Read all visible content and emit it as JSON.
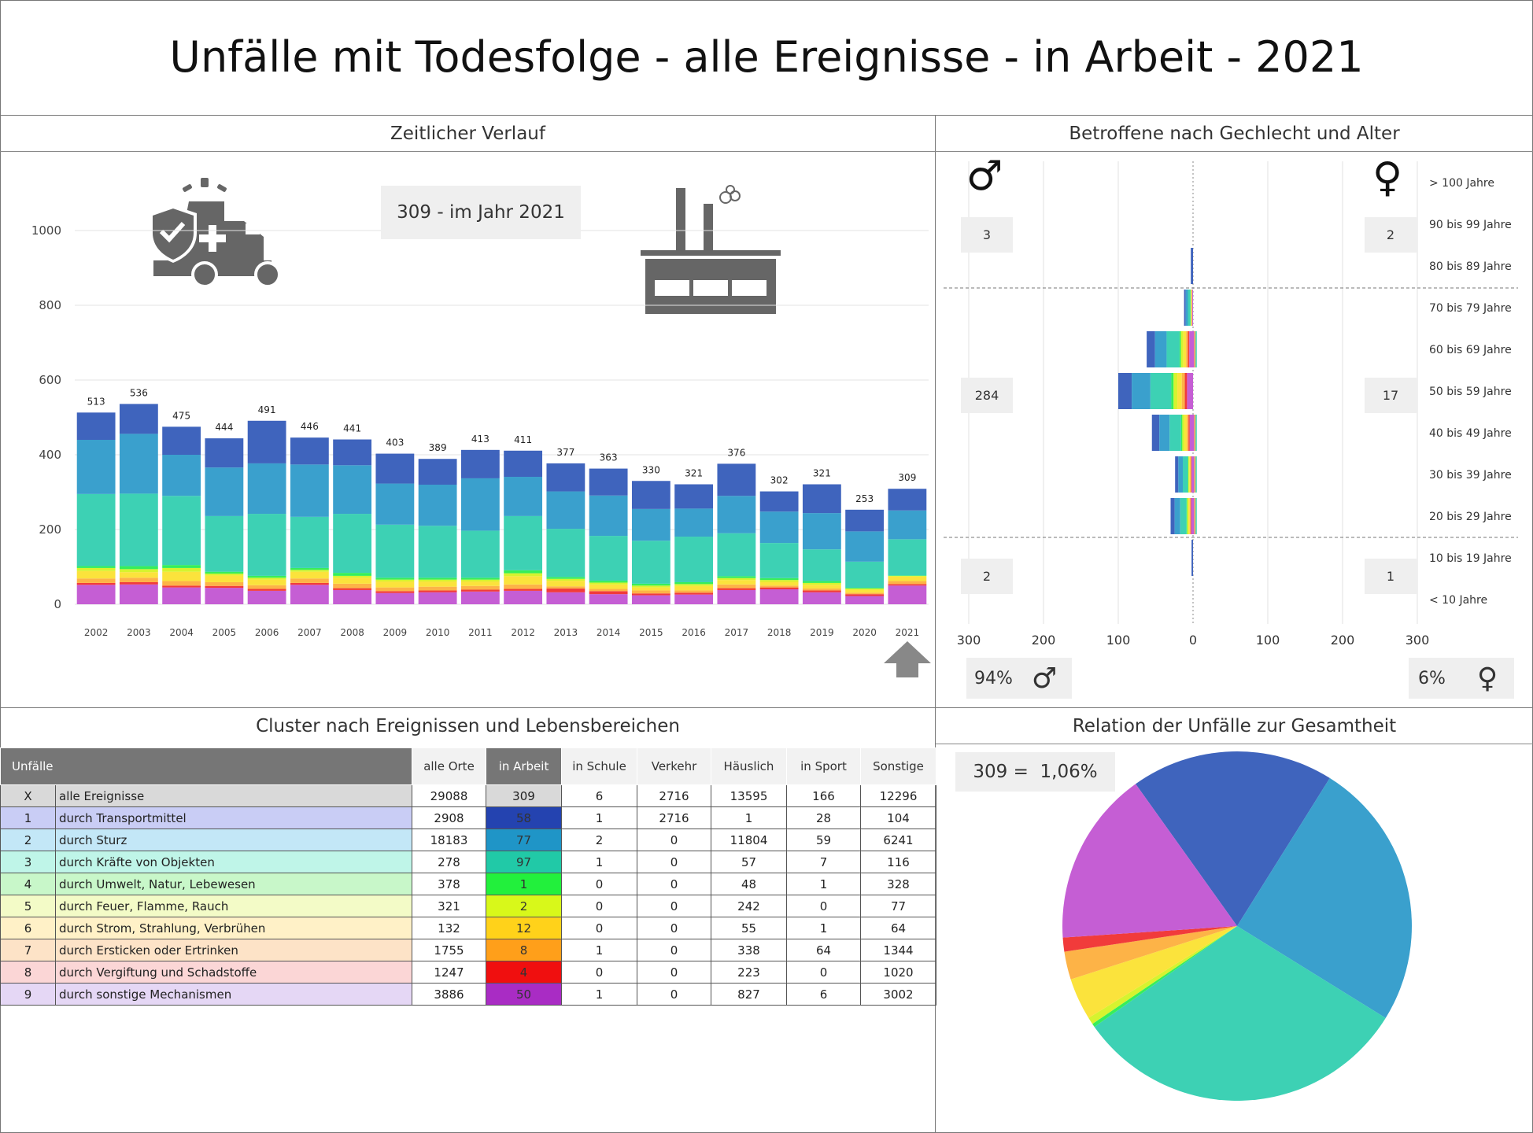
{
  "title": "Unfälle mit Todesfolge - alle Ereignisse - in Arbeit - 2021",
  "panels": {
    "timeline": "Zeitlicher Verlauf",
    "gender_age": "Betroffene nach Gechlecht und Alter",
    "cluster": "Cluster nach Ereignissen und Lebensbereichen",
    "relation": "Relation der Unfälle zur Gesamtheit"
  },
  "timeline_box": "309 - im Jahr 2021",
  "relation_box": "309 =  1,06%",
  "gender": {
    "male_pct": "94%",
    "female_pct": "6%",
    "male_symbol": "♂",
    "female_symbol": "♀",
    "male_groups": [
      "3",
      "284",
      "2"
    ],
    "female_groups": [
      "2",
      "17",
      "1"
    ]
  },
  "colors": {
    "transport": "#3f64bd",
    "sturz": "#3aa0cd",
    "kraefte": "#3dd1b4",
    "umwelt": "#37ee5a",
    "feuer": "#d6f32f",
    "strom": "#fbe33c",
    "ersticken": "#fdb347",
    "vergiftung": "#f13b3b",
    "sonstige": "#c55ed4"
  },
  "chart_data": [
    {
      "type": "bar",
      "stacked": true,
      "categories": [
        "2002",
        "2003",
        "2004",
        "2005",
        "2006",
        "2007",
        "2008",
        "2009",
        "2010",
        "2011",
        "2012",
        "2013",
        "2014",
        "2015",
        "2016",
        "2017",
        "2018",
        "2019",
        "2020",
        "2021"
      ],
      "totals": [
        513,
        536,
        475,
        444,
        491,
        446,
        441,
        403,
        389,
        413,
        411,
        377,
        363,
        330,
        321,
        376,
        302,
        321,
        253,
        309
      ],
      "series": [
        {
          "values": [
            52,
            53,
            45,
            44,
            36,
            52,
            38,
            30,
            32,
            34,
            36,
            32,
            27,
            24,
            26,
            38,
            40,
            32,
            22,
            50
          ]
        },
        {
          "values": [
            5,
            6,
            5,
            5,
            5,
            5,
            5,
            5,
            5,
            5,
            5,
            10,
            8,
            5,
            5,
            5,
            5,
            5,
            5,
            4
          ]
        },
        {
          "values": [
            12,
            12,
            12,
            10,
            10,
            12,
            12,
            10,
            10,
            10,
            12,
            6,
            6,
            8,
            6,
            10,
            5,
            5,
            4,
            8
          ]
        },
        {
          "values": [
            20,
            15,
            25,
            18,
            15,
            18,
            16,
            16,
            14,
            12,
            22,
            15,
            12,
            8,
            12,
            12,
            10,
            10,
            8,
            12
          ]
        },
        {
          "values": [
            8,
            8,
            10,
            5,
            5,
            5,
            5,
            5,
            5,
            5,
            8,
            5,
            5,
            5,
            5,
            5,
            5,
            5,
            3,
            2
          ]
        },
        {
          "values": [
            5,
            8,
            8,
            5,
            5,
            5,
            8,
            5,
            5,
            5,
            8,
            5,
            5,
            5,
            5,
            5,
            5,
            5,
            2,
            1
          ]
        },
        {
          "values": [
            193,
            194,
            185,
            149,
            166,
            137,
            158,
            142,
            139,
            126,
            145,
            129,
            120,
            115,
            122,
            115,
            94,
            85,
            70,
            97
          ]
        },
        {
          "values": [
            145,
            160,
            110,
            130,
            135,
            140,
            130,
            110,
            110,
            140,
            105,
            100,
            108,
            85,
            75,
            100,
            84,
            97,
            81,
            77
          ]
        },
        {
          "values": [
            73,
            80,
            75,
            78,
            114,
            72,
            69,
            80,
            69,
            76,
            70,
            75,
            72,
            75,
            65,
            86,
            54,
            77,
            58,
            58
          ]
        }
      ],
      "ylim": [
        0,
        1000
      ],
      "yticks": [
        0,
        200,
        400,
        600,
        800,
        1000
      ]
    },
    {
      "type": "bar",
      "orientation": "horizontal",
      "categories": [
        "< 10 Jahre",
        "10 bis 19 Jahre",
        "20 bis 29 Jahre",
        "30 bis 39 Jahre",
        "40 bis 49 Jahre",
        "50 bis 59 Jahre",
        "60 bis 69 Jahre",
        "70 bis 79 Jahre",
        "80 bis 89 Jahre",
        "90 bis 99 Jahre",
        "> 100 Jahre"
      ],
      "male": [
        0,
        2,
        30,
        24,
        55,
        100,
        62,
        12,
        3,
        0,
        0
      ],
      "female": [
        0,
        0,
        5,
        5,
        5,
        0,
        5,
        0,
        0,
        0,
        0
      ],
      "xticks": [
        "300",
        "200",
        "100",
        "0",
        "100",
        "200",
        "300"
      ],
      "xlim": [
        -300,
        300
      ]
    },
    {
      "type": "pie",
      "labels": [
        "durch Transportmittel",
        "durch Sturz",
        "durch Kräfte von Objekten",
        "durch Umwelt, Natur, Lebewesen",
        "durch Feuer, Flamme, Rauch",
        "durch Strom, Strahlung, Verbrühen",
        "durch Ersticken oder Ertrinken",
        "durch Vergiftung und Schadstoffe",
        "durch sonstige Mechanismen"
      ],
      "values": [
        58,
        77,
        97,
        1,
        2,
        12,
        8,
        4,
        50
      ]
    }
  ],
  "table": {
    "headers": [
      "Unfälle",
      "alle Orte",
      "in Arbeit",
      "in Schule",
      "Verkehr",
      "Häuslich",
      "in Sport",
      "Sonstige"
    ],
    "rows": [
      {
        "num": "X",
        "label": "alle Ereignisse",
        "v": [
          "29088",
          "309",
          "6",
          "2716",
          "13595",
          "166",
          "12296"
        ],
        "bg": "#d9d9d9",
        "arb": "#d9d9d9"
      },
      {
        "num": "1",
        "label": "durch Transportmittel",
        "v": [
          "2908",
          "58",
          "1",
          "2716",
          "1",
          "28",
          "104"
        ],
        "bg": "#c9cdf5",
        "arb": "#2443b0"
      },
      {
        "num": "2",
        "label": "durch Sturz",
        "v": [
          "18183",
          "77",
          "2",
          "0",
          "11804",
          "59",
          "6241"
        ],
        "bg": "#c3e7f7",
        "arb": "#1f95c7"
      },
      {
        "num": "3",
        "label": "durch Kräfte von Objekten",
        "v": [
          "278",
          "97",
          "1",
          "0",
          "57",
          "7",
          "116"
        ],
        "bg": "#bff5e8",
        "arb": "#21c9a7"
      },
      {
        "num": "4",
        "label": "durch Umwelt, Natur, Lebewesen",
        "v": [
          "378",
          "1",
          "0",
          "0",
          "48",
          "1",
          "328"
        ],
        "bg": "#c8f7c9",
        "arb": "#22f03c"
      },
      {
        "num": "5",
        "label": "durch Feuer, Flamme, Rauch",
        "v": [
          "321",
          "2",
          "0",
          "0",
          "242",
          "0",
          "77"
        ],
        "bg": "#f3fbc7",
        "arb": "#d8f81a"
      },
      {
        "num": "6",
        "label": "durch Strom, Strahlung, Verbrühen",
        "v": [
          "132",
          "12",
          "0",
          "0",
          "55",
          "1",
          "64"
        ],
        "bg": "#fff1c7",
        "arb": "#ffd21a"
      },
      {
        "num": "7",
        "label": "durch Ersticken oder Ertrinken",
        "v": [
          "1755",
          "8",
          "1",
          "0",
          "338",
          "64",
          "1344"
        ],
        "bg": "#fde3c7",
        "arb": "#ff9f1a"
      },
      {
        "num": "8",
        "label": "durch Vergiftung und Schadstoffe",
        "v": [
          "1247",
          "4",
          "0",
          "0",
          "223",
          "0",
          "1020"
        ],
        "bg": "#fbd6d6",
        "arb": "#f00f0f"
      },
      {
        "num": "9",
        "label": "durch sonstige Mechanismen",
        "v": [
          "3886",
          "50",
          "1",
          "0",
          "827",
          "6",
          "3002"
        ],
        "bg": "#e5d7f5",
        "arb": "#a92cc4"
      }
    ]
  }
}
